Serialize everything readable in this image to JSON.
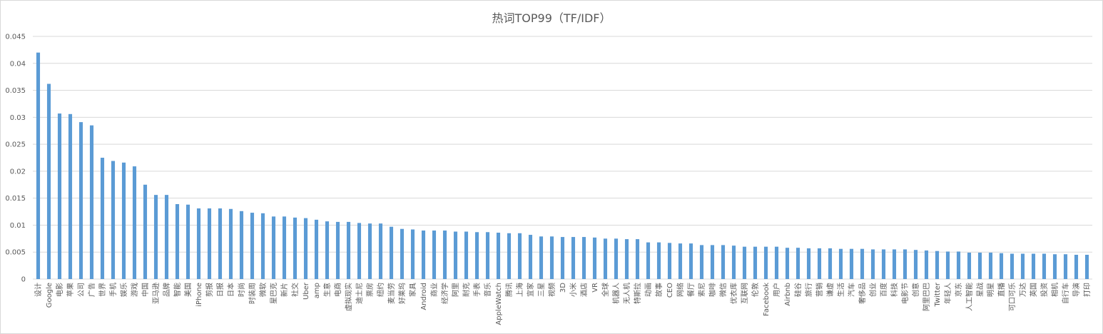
{
  "chart_data": {
    "type": "bar",
    "title": "热词TOP99（TF/IDF）",
    "ylim": [
      0,
      0.045
    ],
    "yticks": [
      "0",
      "0.005",
      "0.01",
      "0.015",
      "0.02",
      "0.025",
      "0.03",
      "0.035",
      "0.04",
      "0.045"
    ],
    "grid": true,
    "bar_color": "#5b9bd5",
    "categories": [
      "设计",
      "Google",
      "电影",
      "苹果",
      "公司",
      "广告",
      "世界",
      "手机",
      "娱乐",
      "游戏",
      "中国",
      "亚马逊",
      "品牌",
      "智能",
      "美国",
      "iPhone",
      "剪报",
      "日报",
      "日本",
      "时尚",
      "时装周",
      "微软",
      "星巴克",
      "新片",
      "社交",
      "Uber",
      "amp",
      "生意",
      "电商",
      "虚拟现实",
      "迪士尼",
      "票房",
      "纽约",
      "麦当劳",
      "好莱坞",
      "家具",
      "Android",
      "商业",
      "经济学",
      "阿里",
      "耐克",
      "手表",
      "音乐",
      "AppleWatch",
      "腾讯",
      "上海",
      "宜家",
      "三星",
      "视频",
      "3D",
      "小米",
      "酒店",
      "VR",
      "全球",
      "机器人",
      "无人机",
      "特斯拉",
      "动画",
      "故事",
      "CEO",
      "网络",
      "餐厅",
      "索尼",
      "咖啡",
      "微信",
      "优衣库",
      "互联网",
      "伦敦",
      "Facebook",
      "用户",
      "Airbnb",
      "硅谷",
      "旅行",
      "营销",
      "谦虚",
      "生活",
      "汽车",
      "奢侈品",
      "创业",
      "百度",
      "科技",
      "电影节",
      "创意",
      "阿里巴巴",
      "Twitter",
      "年轻人",
      "京东",
      "人工智能",
      "星战",
      "明星",
      "直播",
      "可口可乐",
      "万达",
      "英国",
      "投资",
      "相机",
      "自行车",
      "导演",
      "打印"
    ],
    "values": [
      0.042,
      0.0362,
      0.0307,
      0.0306,
      0.0291,
      0.0285,
      0.0225,
      0.0219,
      0.0216,
      0.0209,
      0.0175,
      0.0156,
      0.0156,
      0.0139,
      0.0138,
      0.0131,
      0.0131,
      0.0131,
      0.013,
      0.0126,
      0.0123,
      0.0122,
      0.0116,
      0.0116,
      0.0114,
      0.0113,
      0.011,
      0.0107,
      0.0106,
      0.0106,
      0.0104,
      0.0103,
      0.0103,
      0.0097,
      0.0093,
      0.0092,
      0.009,
      0.009,
      0.009,
      0.0088,
      0.0088,
      0.0087,
      0.0087,
      0.0086,
      0.0085,
      0.0085,
      0.0082,
      0.0079,
      0.0079,
      0.0078,
      0.0078,
      0.0078,
      0.0077,
      0.0075,
      0.0075,
      0.0074,
      0.0074,
      0.0068,
      0.0068,
      0.0067,
      0.0066,
      0.0066,
      0.0063,
      0.0063,
      0.0063,
      0.0062,
      0.006,
      0.006,
      0.006,
      0.006,
      0.0058,
      0.0058,
      0.0057,
      0.0057,
      0.0057,
      0.0056,
      0.0056,
      0.0056,
      0.0055,
      0.0055,
      0.0055,
      0.0055,
      0.0054,
      0.0053,
      0.0052,
      0.0051,
      0.0051,
      0.0049,
      0.0049,
      0.0049,
      0.0048,
      0.0047,
      0.0047,
      0.0047,
      0.0047,
      0.0046,
      0.0046,
      0.0045,
      0.0045
    ]
  }
}
